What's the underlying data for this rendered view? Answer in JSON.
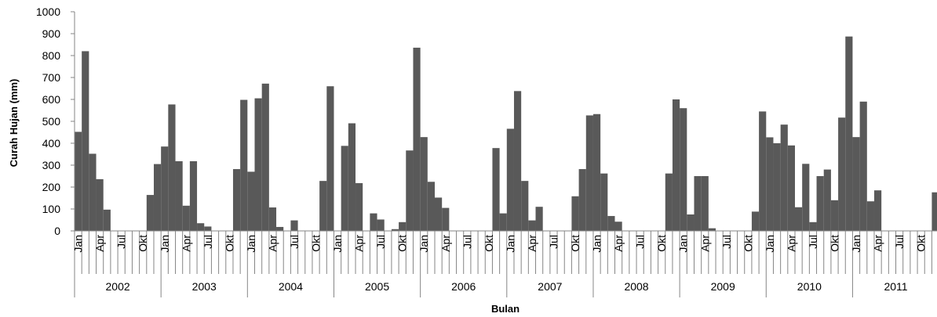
{
  "chart_data": {
    "type": "bar",
    "title": "",
    "xlabel": "Bulan",
    "ylabel": "Curah Hujan (mm)",
    "ylim": [
      0,
      1000
    ],
    "yticks": [
      0,
      100,
      200,
      300,
      400,
      500,
      600,
      700,
      800,
      900,
      1000
    ],
    "grid": false,
    "legend": "none",
    "bar_color": "#595959",
    "month_labels": [
      "Jan",
      "Apr",
      "Jul",
      "Okt"
    ],
    "month_label_indices": [
      0,
      3,
      6,
      9
    ],
    "years": [
      "2002",
      "2003",
      "2004",
      "2005",
      "2006",
      "2007",
      "2008",
      "2009",
      "2010",
      "2011"
    ],
    "series": [
      {
        "values": [
          452,
          820,
          352,
          236,
          97,
          0,
          0,
          0,
          0,
          0,
          164,
          305,
          385,
          577,
          318,
          115,
          318,
          35,
          20,
          0,
          0,
          0,
          282,
          598,
          270,
          605,
          672,
          107,
          18,
          0,
          48,
          0,
          0,
          0,
          228,
          660,
          0,
          388,
          491,
          218,
          0,
          80,
          52,
          0,
          8,
          40,
          367,
          836,
          428,
          224,
          152,
          105,
          0,
          0,
          0,
          0,
          0,
          0,
          378,
          80,
          466,
          638,
          228,
          48,
          110,
          0,
          0,
          0,
          0,
          158,
          282,
          527,
          533,
          262,
          68,
          42,
          0,
          0,
          0,
          0,
          0,
          0,
          262,
          600,
          560,
          75,
          250,
          250,
          12,
          0,
          0,
          0,
          0,
          0,
          88,
          545,
          427,
          400,
          485,
          390,
          108,
          306,
          40,
          250,
          280,
          140,
          517,
          887,
          428,
          590,
          135,
          185,
          0,
          0,
          0,
          0,
          0,
          0,
          0,
          176
        ],
        "trailing_value": 190
      }
    ]
  }
}
